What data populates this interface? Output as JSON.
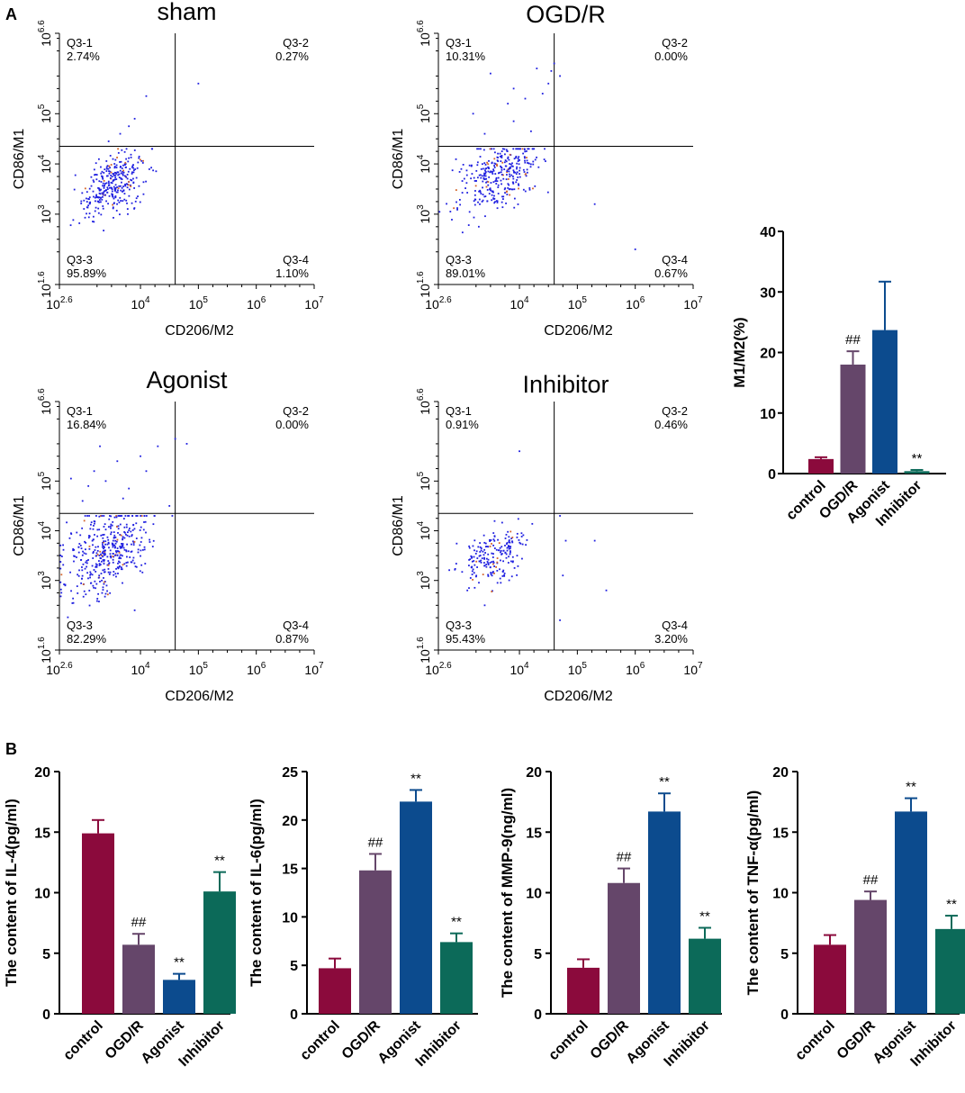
{
  "panel_labels": {
    "a": "A",
    "b": "B"
  },
  "colors": {
    "control": "#8b0a3c",
    "ogdr": "#65466a",
    "agonist": "#0c4b8e",
    "inhibitor": "#0c6a59",
    "dots": "#1f1fe0",
    "dots_warm": "#d4642a"
  },
  "chart_data": [
    {
      "type": "scatter",
      "title": "sham",
      "xlabel": "CD206/M2",
      "ylabel": "CD86/M1",
      "x_ticks": [
        {
          "base": "10",
          "exp": "2.6"
        },
        {
          "base": "10",
          "exp": "4"
        },
        {
          "base": "10",
          "exp": "5"
        },
        {
          "base": "10",
          "exp": "6"
        },
        {
          "base": "10",
          "exp": "7"
        }
      ],
      "y_ticks": [
        {
          "base": "10",
          "exp": "1.6"
        },
        {
          "base": "10",
          "exp": "3"
        },
        {
          "base": "10",
          "exp": "4"
        },
        {
          "base": "10",
          "exp": "5"
        },
        {
          "base": "10",
          "exp": "6.6"
        }
      ],
      "x_range_log": [
        2.6,
        7
      ],
      "y_range_log": [
        1.6,
        6.6
      ],
      "gate_log": {
        "x": 4.6,
        "y": 4.35
      },
      "quadrants": [
        {
          "name": "Q3-1",
          "pct": "2.74%"
        },
        {
          "name": "Q3-2",
          "pct": "0.27%"
        },
        {
          "name": "Q3-3",
          "pct": "95.89%"
        },
        {
          "name": "Q3-4",
          "pct": "1.10%"
        }
      ],
      "cluster": {
        "cx": 3.55,
        "cy": 3.6,
        "sx": 0.28,
        "sy": 0.28,
        "n": 320,
        "seed": 11
      },
      "outliers": [
        [
          4.1,
          5.35
        ],
        [
          5.0,
          5.6
        ],
        [
          3.65,
          4.6
        ],
        [
          3.8,
          4.75
        ],
        [
          3.45,
          4.45
        ],
        [
          3.9,
          4.9
        ]
      ]
    },
    {
      "type": "scatter",
      "title": "OGD/R",
      "xlabel": "CD206/M2",
      "ylabel": "CD86/M1",
      "x_ticks": [
        {
          "base": "10",
          "exp": "2.6"
        },
        {
          "base": "10",
          "exp": "4"
        },
        {
          "base": "10",
          "exp": "5"
        },
        {
          "base": "10",
          "exp": "6"
        },
        {
          "base": "10",
          "exp": "7"
        }
      ],
      "y_ticks": [
        {
          "base": "10",
          "exp": "1.6"
        },
        {
          "base": "10",
          "exp": "3"
        },
        {
          "base": "10",
          "exp": "4"
        },
        {
          "base": "10",
          "exp": "5"
        },
        {
          "base": "10",
          "exp": "6.6"
        }
      ],
      "x_range_log": [
        2.6,
        7
      ],
      "y_range_log": [
        1.6,
        6.6
      ],
      "gate_log": {
        "x": 4.6,
        "y": 4.35
      },
      "quadrants": [
        {
          "name": "Q3-1",
          "pct": "10.31%"
        },
        {
          "name": "Q3-2",
          "pct": "0.00%"
        },
        {
          "name": "Q3-3",
          "pct": "89.01%"
        },
        {
          "name": "Q3-4",
          "pct": "0.67%"
        }
      ],
      "cluster": {
        "cx": 3.65,
        "cy": 3.75,
        "sx": 0.33,
        "sy": 0.33,
        "n": 330,
        "seed": 23
      },
      "outliers": [
        [
          3.5,
          5.8
        ],
        [
          4.3,
          5.9
        ],
        [
          4.5,
          5.6
        ],
        [
          4.6,
          6.0
        ],
        [
          4.7,
          5.75
        ],
        [
          3.8,
          5.2
        ],
        [
          4.1,
          5.3
        ],
        [
          3.2,
          5.0
        ],
        [
          3.9,
          4.85
        ],
        [
          4.2,
          4.65
        ],
        [
          3.4,
          4.6
        ],
        [
          5.3,
          3.2
        ],
        [
          6.0,
          2.3
        ],
        [
          4.4,
          5.4
        ],
        [
          4.55,
          5.85
        ],
        [
          3.9,
          5.5
        ]
      ]
    },
    {
      "type": "scatter",
      "title": "Agonist",
      "xlabel": "CD206/M2",
      "ylabel": "CD86/M1",
      "x_ticks": [
        {
          "base": "10",
          "exp": "2.6"
        },
        {
          "base": "10",
          "exp": "4"
        },
        {
          "base": "10",
          "exp": "5"
        },
        {
          "base": "10",
          "exp": "6"
        },
        {
          "base": "10",
          "exp": "7"
        }
      ],
      "y_ticks": [
        {
          "base": "10",
          "exp": "1.6"
        },
        {
          "base": "10",
          "exp": "3"
        },
        {
          "base": "10",
          "exp": "4"
        },
        {
          "base": "10",
          "exp": "5"
        },
        {
          "base": "10",
          "exp": "6.6"
        }
      ],
      "x_range_log": [
        2.6,
        7
      ],
      "y_range_log": [
        1.6,
        6.6
      ],
      "gate_log": {
        "x": 4.6,
        "y": 4.35
      },
      "quadrants": [
        {
          "name": "Q3-1",
          "pct": "16.84%"
        },
        {
          "name": "Q3-2",
          "pct": "0.00%"
        },
        {
          "name": "Q3-3",
          "pct": "82.29%"
        },
        {
          "name": "Q3-4",
          "pct": "0.87%"
        }
      ],
      "cluster": {
        "cx": 3.45,
        "cy": 3.6,
        "sx": 0.38,
        "sy": 0.42,
        "n": 420,
        "seed": 37
      },
      "outliers": [
        [
          3.2,
          5.2
        ],
        [
          3.6,
          5.4
        ],
        [
          4.0,
          5.5
        ],
        [
          4.3,
          5.7
        ],
        [
          4.6,
          5.85
        ],
        [
          4.8,
          5.75
        ],
        [
          3.1,
          4.9
        ],
        [
          3.4,
          5.0
        ],
        [
          3.8,
          4.85
        ],
        [
          2.8,
          5.05
        ],
        [
          3.3,
          5.7
        ],
        [
          3.0,
          4.6
        ],
        [
          3.7,
          4.65
        ],
        [
          4.1,
          5.2
        ],
        [
          2.7,
          2.9
        ],
        [
          3.9,
          2.4
        ],
        [
          4.5,
          4.5
        ]
      ]
    },
    {
      "type": "scatter",
      "title": "Inhibitor",
      "xlabel": "CD206/M2",
      "ylabel": "CD86/M1",
      "x_ticks": [
        {
          "base": "10",
          "exp": "2.6"
        },
        {
          "base": "10",
          "exp": "4"
        },
        {
          "base": "10",
          "exp": "5"
        },
        {
          "base": "10",
          "exp": "6"
        },
        {
          "base": "10",
          "exp": "7"
        }
      ],
      "y_ticks": [
        {
          "base": "10",
          "exp": "1.6"
        },
        {
          "base": "10",
          "exp": "3"
        },
        {
          "base": "10",
          "exp": "4"
        },
        {
          "base": "10",
          "exp": "5"
        },
        {
          "base": "10",
          "exp": "6.6"
        }
      ],
      "x_range_log": [
        2.6,
        7
      ],
      "y_range_log": [
        1.6,
        6.6
      ],
      "gate_log": {
        "x": 4.6,
        "y": 4.35
      },
      "quadrants": [
        {
          "name": "Q3-1",
          "pct": "0.91%"
        },
        {
          "name": "Q3-2",
          "pct": "0.46%"
        },
        {
          "name": "Q3-3",
          "pct": "95.43%"
        },
        {
          "name": "Q3-4",
          "pct": "3.20%"
        }
      ],
      "cluster": {
        "cx": 3.55,
        "cy": 3.5,
        "sx": 0.3,
        "sy": 0.28,
        "n": 200,
        "seed": 53
      },
      "outliers": [
        [
          4.7,
          4.3
        ],
        [
          4.8,
          3.8
        ],
        [
          4.75,
          3.1
        ],
        [
          5.3,
          3.8
        ],
        [
          5.5,
          2.8
        ],
        [
          4.7,
          2.2
        ],
        [
          4.0,
          5.6
        ],
        [
          3.4,
          2.5
        ],
        [
          3.1,
          2.8
        ]
      ]
    },
    {
      "type": "bar",
      "categories": [
        "control",
        "OGD/R",
        "Agonist",
        "Inhibitor"
      ],
      "values": [
        2.4,
        18.0,
        23.7,
        0.4
      ],
      "errors": [
        0.3,
        2.2,
        8.0,
        0.2
      ],
      "annotations": [
        "",
        "##",
        "",
        "**"
      ],
      "ylabel": "M1/M2(%)",
      "ylim": [
        0,
        40
      ],
      "yticks": [
        "0",
        "10",
        "20",
        "30",
        "40"
      ]
    },
    {
      "type": "bar",
      "categories": [
        "control",
        "OGD/R",
        "Agonist",
        "Inhibitor"
      ],
      "values": [
        14.9,
        5.7,
        2.8,
        10.1
      ],
      "errors": [
        1.1,
        0.9,
        0.5,
        1.6
      ],
      "annotations": [
        "",
        "##",
        "**",
        "**"
      ],
      "ylabel": "The content of IL-4(pg/ml)",
      "ylim": [
        0,
        20
      ],
      "yticks": [
        "0",
        "5",
        "10",
        "15",
        "20"
      ]
    },
    {
      "type": "bar",
      "categories": [
        "control",
        "OGD/R",
        "Agonist",
        "Inhibitor"
      ],
      "values": [
        4.7,
        14.8,
        21.9,
        7.4
      ],
      "errors": [
        1.0,
        1.7,
        1.2,
        0.9
      ],
      "annotations": [
        "",
        "##",
        "**",
        "**"
      ],
      "ylabel": "The content of IL-6(pg/ml)",
      "ylim": [
        0,
        25
      ],
      "yticks": [
        "0",
        "5",
        "10",
        "15",
        "20",
        "25"
      ]
    },
    {
      "type": "bar",
      "categories": [
        "control",
        "OGD/R",
        "Agonist",
        "Inhibitor"
      ],
      "values": [
        3.8,
        10.8,
        16.7,
        6.2
      ],
      "errors": [
        0.7,
        1.2,
        1.5,
        0.9
      ],
      "annotations": [
        "",
        "##",
        "**",
        "**"
      ],
      "ylabel": "The content of MMP-9(ng/ml)",
      "ylim": [
        0,
        20
      ],
      "yticks": [
        "0",
        "5",
        "10",
        "15",
        "20"
      ]
    },
    {
      "type": "bar",
      "categories": [
        "control",
        "OGD/R",
        "Agonist",
        "Inhibitor"
      ],
      "values": [
        5.7,
        9.4,
        16.7,
        7.0
      ],
      "errors": [
        0.8,
        0.7,
        1.1,
        1.1
      ],
      "annotations": [
        "",
        "##",
        "**",
        "**"
      ],
      "ylabel": "The content of TNF-α(pg/ml)",
      "ylim": [
        0,
        20
      ],
      "yticks": [
        "0",
        "5",
        "10",
        "15",
        "20"
      ]
    }
  ]
}
